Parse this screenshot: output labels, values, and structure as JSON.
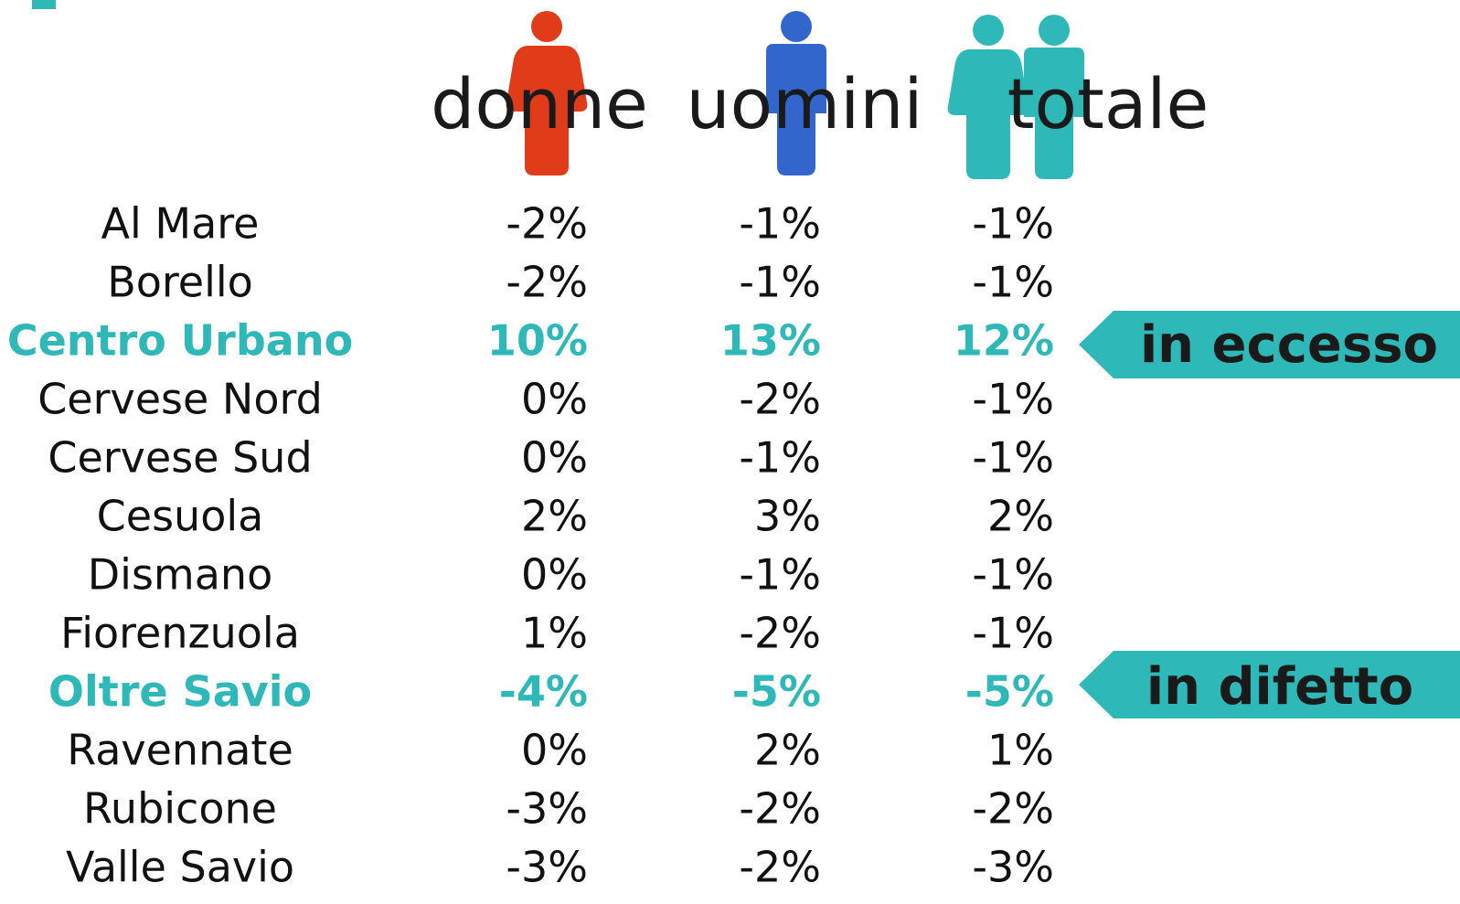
{
  "header": {
    "columns": [
      "donne",
      "uomini",
      "totale"
    ]
  },
  "table": {
    "rows": [
      [
        "Al Mare",
        "-2%",
        "-1%",
        "-1%"
      ],
      [
        "Borello",
        "-2%",
        "-1%",
        "-1%"
      ],
      [
        "Centro Urbano",
        "10%",
        "13%",
        "12%"
      ],
      [
        "Cervese Nord",
        "0%",
        "-2%",
        "-1%"
      ],
      [
        "Cervese Sud",
        "0%",
        "-1%",
        "-1%"
      ],
      [
        "Cesuola",
        "2%",
        "3%",
        "2%"
      ],
      [
        "Dismano",
        "0%",
        "-1%",
        "-1%"
      ],
      [
        "Fiorenzuola",
        "1%",
        "-2%",
        "-1%"
      ],
      [
        "Oltre Savio",
        "-4%",
        "-5%",
        "-5%"
      ],
      [
        "Ravennate",
        "0%",
        "2%",
        "1%"
      ],
      [
        "Rubicone",
        "-3%",
        "-2%",
        "-2%"
      ],
      [
        "Valle Savio",
        "-3%",
        "-2%",
        "-3%"
      ]
    ]
  },
  "callouts": [
    "in eccesso",
    "in difetto"
  ]
}
